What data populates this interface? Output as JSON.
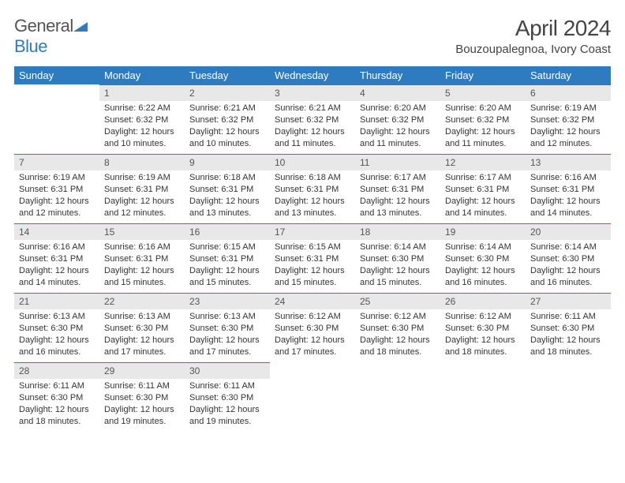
{
  "logo": {
    "text1": "General",
    "text2": "Blue"
  },
  "title": "April 2024",
  "location": "Bouzoupalegnoa, Ivory Coast",
  "colors": {
    "header_bg": "#2e7bc0",
    "header_fg": "#ffffff",
    "daynum_bg": "#e8e8e8",
    "text": "#333333",
    "logo_gray": "#555555",
    "logo_blue": "#2e7bc0"
  },
  "weekdays": [
    "Sunday",
    "Monday",
    "Tuesday",
    "Wednesday",
    "Thursday",
    "Friday",
    "Saturday"
  ],
  "weeks": [
    [
      null,
      {
        "n": "1",
        "sr": "6:22 AM",
        "ss": "6:32 PM",
        "dl": "12 hours and 10 minutes."
      },
      {
        "n": "2",
        "sr": "6:21 AM",
        "ss": "6:32 PM",
        "dl": "12 hours and 10 minutes."
      },
      {
        "n": "3",
        "sr": "6:21 AM",
        "ss": "6:32 PM",
        "dl": "12 hours and 11 minutes."
      },
      {
        "n": "4",
        "sr": "6:20 AM",
        "ss": "6:32 PM",
        "dl": "12 hours and 11 minutes."
      },
      {
        "n": "5",
        "sr": "6:20 AM",
        "ss": "6:32 PM",
        "dl": "12 hours and 11 minutes."
      },
      {
        "n": "6",
        "sr": "6:19 AM",
        "ss": "6:32 PM",
        "dl": "12 hours and 12 minutes."
      }
    ],
    [
      {
        "n": "7",
        "sr": "6:19 AM",
        "ss": "6:31 PM",
        "dl": "12 hours and 12 minutes."
      },
      {
        "n": "8",
        "sr": "6:19 AM",
        "ss": "6:31 PM",
        "dl": "12 hours and 12 minutes."
      },
      {
        "n": "9",
        "sr": "6:18 AM",
        "ss": "6:31 PM",
        "dl": "12 hours and 13 minutes."
      },
      {
        "n": "10",
        "sr": "6:18 AM",
        "ss": "6:31 PM",
        "dl": "12 hours and 13 minutes."
      },
      {
        "n": "11",
        "sr": "6:17 AM",
        "ss": "6:31 PM",
        "dl": "12 hours and 13 minutes."
      },
      {
        "n": "12",
        "sr": "6:17 AM",
        "ss": "6:31 PM",
        "dl": "12 hours and 14 minutes."
      },
      {
        "n": "13",
        "sr": "6:16 AM",
        "ss": "6:31 PM",
        "dl": "12 hours and 14 minutes."
      }
    ],
    [
      {
        "n": "14",
        "sr": "6:16 AM",
        "ss": "6:31 PM",
        "dl": "12 hours and 14 minutes."
      },
      {
        "n": "15",
        "sr": "6:16 AM",
        "ss": "6:31 PM",
        "dl": "12 hours and 15 minutes."
      },
      {
        "n": "16",
        "sr": "6:15 AM",
        "ss": "6:31 PM",
        "dl": "12 hours and 15 minutes."
      },
      {
        "n": "17",
        "sr": "6:15 AM",
        "ss": "6:31 PM",
        "dl": "12 hours and 15 minutes."
      },
      {
        "n": "18",
        "sr": "6:14 AM",
        "ss": "6:30 PM",
        "dl": "12 hours and 15 minutes."
      },
      {
        "n": "19",
        "sr": "6:14 AM",
        "ss": "6:30 PM",
        "dl": "12 hours and 16 minutes."
      },
      {
        "n": "20",
        "sr": "6:14 AM",
        "ss": "6:30 PM",
        "dl": "12 hours and 16 minutes."
      }
    ],
    [
      {
        "n": "21",
        "sr": "6:13 AM",
        "ss": "6:30 PM",
        "dl": "12 hours and 16 minutes."
      },
      {
        "n": "22",
        "sr": "6:13 AM",
        "ss": "6:30 PM",
        "dl": "12 hours and 17 minutes."
      },
      {
        "n": "23",
        "sr": "6:13 AM",
        "ss": "6:30 PM",
        "dl": "12 hours and 17 minutes."
      },
      {
        "n": "24",
        "sr": "6:12 AM",
        "ss": "6:30 PM",
        "dl": "12 hours and 17 minutes."
      },
      {
        "n": "25",
        "sr": "6:12 AM",
        "ss": "6:30 PM",
        "dl": "12 hours and 18 minutes."
      },
      {
        "n": "26",
        "sr": "6:12 AM",
        "ss": "6:30 PM",
        "dl": "12 hours and 18 minutes."
      },
      {
        "n": "27",
        "sr": "6:11 AM",
        "ss": "6:30 PM",
        "dl": "12 hours and 18 minutes."
      }
    ],
    [
      {
        "n": "28",
        "sr": "6:11 AM",
        "ss": "6:30 PM",
        "dl": "12 hours and 18 minutes."
      },
      {
        "n": "29",
        "sr": "6:11 AM",
        "ss": "6:30 PM",
        "dl": "12 hours and 19 minutes."
      },
      {
        "n": "30",
        "sr": "6:11 AM",
        "ss": "6:30 PM",
        "dl": "12 hours and 19 minutes."
      },
      null,
      null,
      null,
      null
    ]
  ],
  "labels": {
    "sunrise": "Sunrise: ",
    "sunset": "Sunset: ",
    "daylight": "Daylight: "
  }
}
